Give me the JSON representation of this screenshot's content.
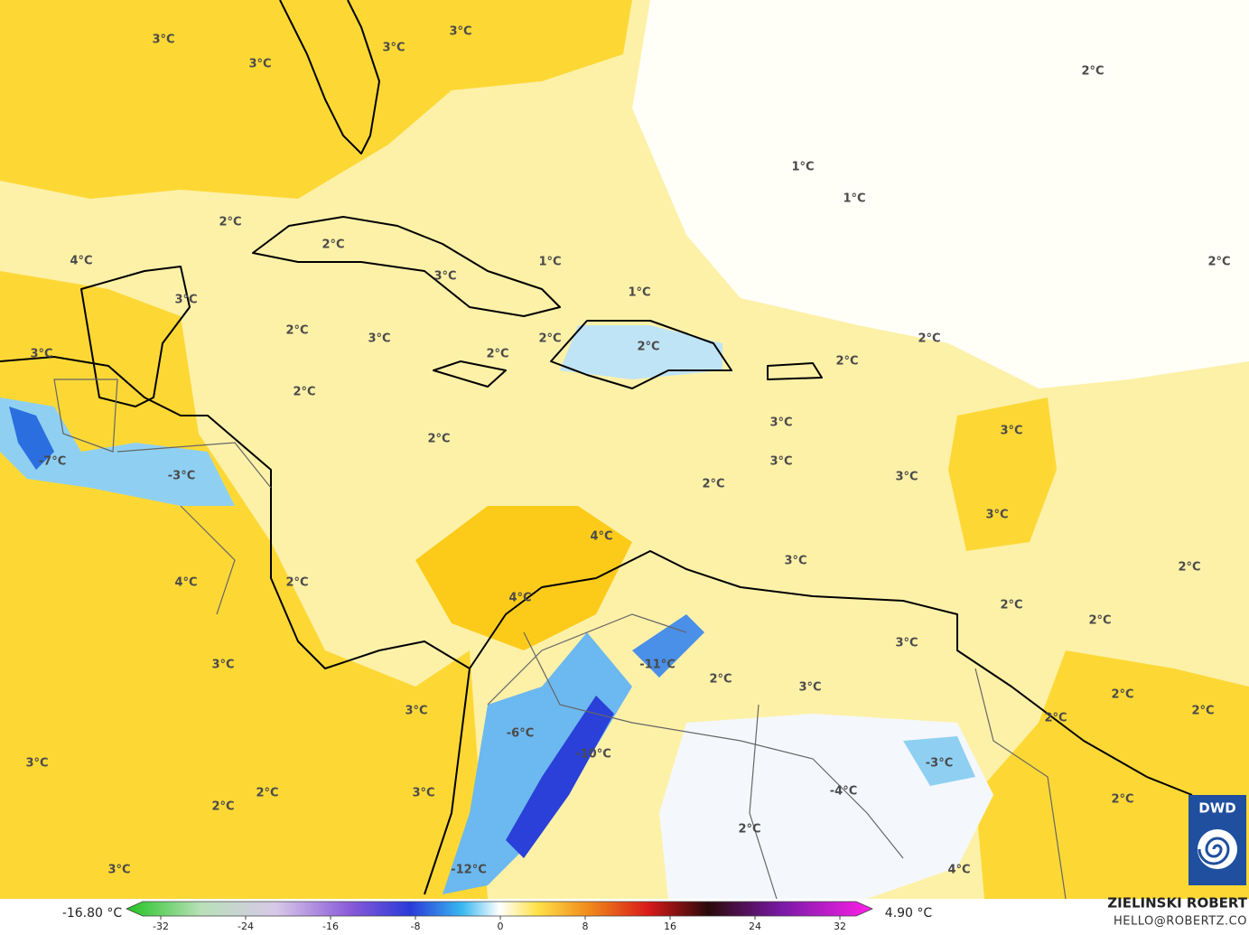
{
  "map": {
    "labels": [
      "3°C",
      "3°C",
      "3°C",
      "3°C",
      "2°C",
      "1°C",
      "1°C",
      "2°C",
      "2°C",
      "4°C",
      "3°C",
      "1°C",
      "1°C",
      "2°C",
      "3°C",
      "2°C",
      "3°C",
      "2°C",
      "2°C",
      "2°C",
      "2°C",
      "3°C",
      "2°C",
      "2°C",
      "2°C",
      "3°C",
      "3°C",
      "3°C",
      "3°C",
      "2°C",
      "-7°C",
      "-3°C",
      "3°C",
      "4°C",
      "3°C",
      "2°C",
      "2°C",
      "4°C",
      "4°C",
      "2°C",
      "2°C",
      "3°C",
      "-11°C",
      "2°C",
      "3°C",
      "3°C",
      "2°C",
      "2°C",
      "3°C",
      "2°C",
      "-6°C",
      "-10°C",
      "-3°C",
      "3°C",
      "-4°C",
      "2°C",
      "3°C",
      "2°C",
      "2°C",
      "2°C",
      "3°C",
      "-12°C",
      "4°C"
    ],
    "colorbar": {
      "min_label": "-16.80 °C",
      "max_label": "4.90 °C",
      "ticks": [
        -32,
        -24,
        -16,
        -8,
        0,
        8,
        16,
        24,
        32
      ]
    },
    "credit": {
      "name": "ZIELINSKI ROBERT",
      "contact": "HELLO@ROBERTZ.CO"
    },
    "logo": "DWD"
  }
}
